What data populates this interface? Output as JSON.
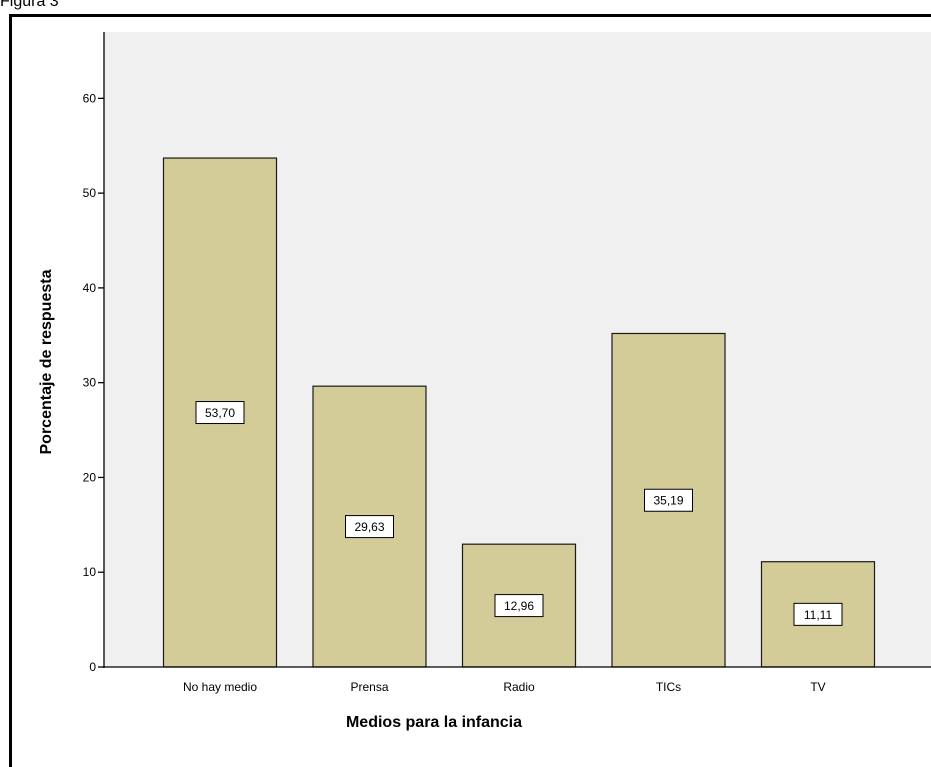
{
  "caption": "Figura 3",
  "chart_data": {
    "type": "bar",
    "categories": [
      "No hay medio",
      "Prensa",
      "Radio",
      "TICs",
      "TV"
    ],
    "values": [
      53.7,
      29.63,
      12.96,
      35.19,
      11.11
    ],
    "data_labels": [
      "53,70",
      "29,63",
      "12,96",
      "35,19",
      "11,11"
    ],
    "xlabel": "Medios para la infancia",
    "ylabel": "Porcentaje de respuesta",
    "ylim": [
      0,
      67
    ],
    "yticks": [
      0,
      10,
      20,
      30,
      40,
      50,
      60
    ],
    "grid": false,
    "legend": "none",
    "colors": {
      "bar_fill": "#d4cc98",
      "bar_stroke": "#1a1a1a",
      "plot_background": "#f0f0f0",
      "axis": "#000000"
    }
  }
}
